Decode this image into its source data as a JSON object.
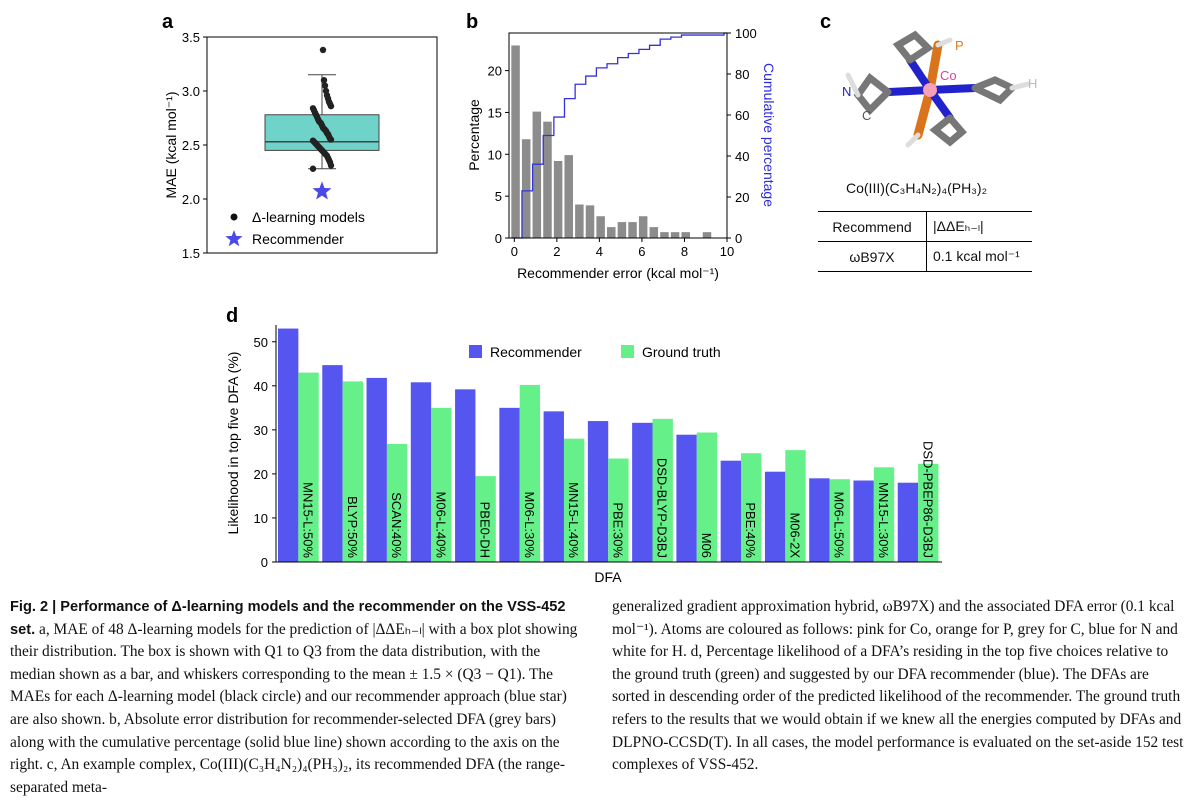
{
  "panels": {
    "a": {
      "letter": "a",
      "ylabel": "MAE (kcal mol⁻¹)",
      "yticks": [
        "1.5",
        "2.0",
        "2.5",
        "3.0",
        "3.5"
      ],
      "legend": [
        "Δ-learning models",
        "Recommender"
      ]
    },
    "b": {
      "letter": "b",
      "ylabel": "Percentage",
      "y2label": "Cumulative percentage",
      "xlabel": "Recommender error (kcal mol⁻¹)",
      "xticks": [
        "0",
        "2",
        "4",
        "6",
        "8",
        "10"
      ],
      "yticks": [
        "0",
        "5",
        "10",
        "15",
        "20"
      ],
      "y2ticks": [
        "0",
        "20",
        "40",
        "60",
        "80",
        "100"
      ]
    },
    "c": {
      "letter": "c",
      "atoms": {
        "P": "P",
        "Co": "Co",
        "N": "N",
        "C": "C",
        "H": "H"
      },
      "formula": "Co(III)(C₃H₄N₂)₄(PH₃)₂",
      "table": {
        "header": [
          "Recommend",
          "|ΔΔEₕ₋ₗ|"
        ],
        "row": [
          "ωB97X",
          "0.1 kcal mol⁻¹"
        ]
      }
    },
    "d": {
      "letter": "d",
      "ylabel": "Likelihood in top five DFA (%)",
      "xlabel": "DFA",
      "yticks": [
        "0",
        "10",
        "20",
        "30",
        "40",
        "50"
      ]
    }
  },
  "chart_data": [
    {
      "panel": "a",
      "type": "box",
      "ylim": [
        1.5,
        3.5
      ],
      "box": {
        "q1": 2.45,
        "median": 2.53,
        "q3": 2.78,
        "whisker_low": 2.28,
        "whisker_high": 3.15
      },
      "outliers": [
        3.38
      ],
      "points": [
        2.28,
        2.31,
        2.34,
        2.36,
        2.38,
        2.4,
        2.41,
        2.42,
        2.43,
        2.44,
        2.45,
        2.46,
        2.47,
        2.48,
        2.49,
        2.5,
        2.51,
        2.52,
        2.53,
        2.54,
        2.55,
        2.56,
        2.58,
        2.6,
        2.61,
        2.63,
        2.64,
        2.65,
        2.66,
        2.68,
        2.7,
        2.71,
        2.72,
        2.74,
        2.76,
        2.78,
        2.8,
        2.82,
        2.84,
        2.86,
        2.88,
        2.9,
        2.93,
        2.96,
        3.0,
        3.05,
        3.1,
        3.38
      ],
      "recommender": 2.07,
      "series": [
        {
          "name": "Δ-learning models"
        },
        {
          "name": "Recommender"
        }
      ],
      "colors": {
        "box": "#6fd3c9",
        "points": "#222222",
        "star": "#4a4ae8"
      }
    },
    {
      "panel": "b",
      "type": "bar",
      "xlim": [
        -0.25,
        10
      ],
      "ylim": [
        0,
        24
      ],
      "y2lim": [
        0,
        100
      ],
      "bins": [
        0,
        0.5,
        1.0,
        1.5,
        2.0,
        2.5,
        3.0,
        3.5,
        4.0,
        4.5,
        5.0,
        5.5,
        6.0,
        6.5,
        7.0,
        7.5,
        8.0,
        8.5,
        9.0
      ],
      "values": [
        23,
        11.8,
        15.1,
        13.9,
        9.2,
        9.9,
        4.0,
        3.9,
        2.6,
        1.3,
        1.9,
        1.9,
        2.6,
        1.3,
        0.7,
        0.7,
        0.7,
        0,
        0.7
      ],
      "cumulative_x": [
        0,
        0.5,
        1.0,
        1.5,
        2.0,
        2.5,
        3.0,
        3.5,
        4.0,
        4.5,
        5.0,
        5.5,
        6.0,
        6.5,
        7.0,
        7.5,
        8.0,
        9.0,
        10.0
      ],
      "cumulative": [
        0,
        23,
        36,
        50,
        59,
        68,
        75,
        79,
        83,
        85,
        88,
        90,
        92,
        94,
        97,
        98,
        99,
        99,
        100
      ],
      "colors": {
        "bar": "#8c8c8c",
        "line": "#3333dd"
      }
    },
    {
      "panel": "d",
      "type": "bar",
      "ylim": [
        0,
        53
      ],
      "categories": [
        "MN15-L:50%",
        "BLYP:50%",
        "SCAN:40%",
        "M06-L:40%",
        "PBE0-DH",
        "M06-L:30%",
        "MN15-L:40%",
        "PBE:30%",
        "DSD-BLYP-D3BJ",
        "M06",
        "PBE:40%",
        "M06-2X",
        "M06-L:50%",
        "MN15-L:30%",
        "DSD-PBEP86-D3BJ"
      ],
      "series": [
        {
          "name": "Recommender",
          "color": "#5555f0",
          "values": [
            53.0,
            44.7,
            41.8,
            40.8,
            39.2,
            35.0,
            34.2,
            32.0,
            31.6,
            28.9,
            23.0,
            20.5,
            19.0,
            18.5,
            18.0
          ]
        },
        {
          "name": "Ground truth",
          "color": "#66f08a",
          "values": [
            43.0,
            41.0,
            26.8,
            35.0,
            19.5,
            40.2,
            28.0,
            23.5,
            32.5,
            29.4,
            24.7,
            25.4,
            18.8,
            21.5,
            22.3
          ]
        }
      ]
    }
  ],
  "caption": {
    "lead": "Fig. 2 | Performance of Δ-learning models and the recommender on the VSS-452 set.",
    "left": "a, MAE of 48 Δ-learning models for the prediction of |ΔΔEₕ₋ₗ| with a box plot showing their distribution. The box is shown with Q1 to Q3 from the data distribution, with the median shown as a bar, and whiskers corresponding to the mean ± 1.5 × (Q3 − Q1). The MAEs for each Δ-learning model (black circle) and our recommender approach (blue star) are also shown. b, Absolute error distribution for recommender-selected DFA (grey bars) along with the cumulative percentage (solid blue line) shown according to the axis on the right. c, An example complex, Co(III)(C₃H₄N₂)₄(PH₃)₂, its recommended DFA (the range-separated meta-",
    "right": "generalized gradient approximation hybrid, ωB97X) and the associated DFA error (0.1 kcal mol⁻¹). Atoms are coloured as follows: pink for Co, orange for P, grey for C, blue for N and white for H. d, Percentage likelihood of a DFA’s residing in the top five choices relative to the ground truth (green) and suggested by our DFA recommender (blue). The DFAs are sorted in descending order of the predicted likelihood of the recommender. The ground truth refers to the results that we would obtain if we knew all the energies computed by DFAs and DLPNO-CCSD(T). In all cases, the model performance is evaluated on the set-aside 152 test complexes of VSS-452."
  }
}
